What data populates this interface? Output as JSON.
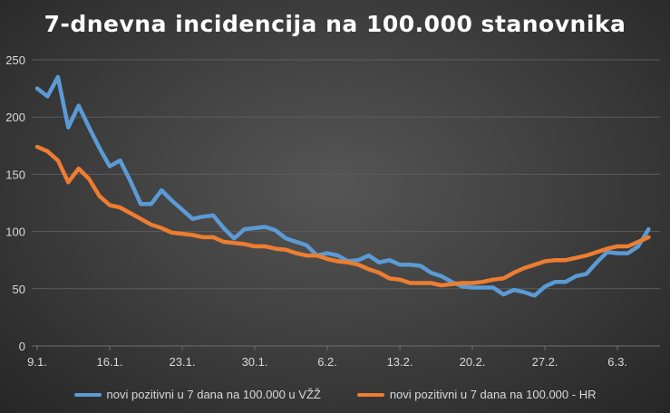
{
  "chart_data": {
    "type": "line",
    "title": "7-dnevna incidencija na 100.000 stanovnika",
    "xlabel": "",
    "ylabel": "",
    "ylim": [
      0,
      250
    ],
    "yticks": [
      0,
      50,
      100,
      150,
      200,
      250
    ],
    "grid": true,
    "legend_position": "bottom",
    "x": [
      "9.1.",
      "10.1.",
      "11.1.",
      "12.1.",
      "13.1.",
      "14.1.",
      "15.1.",
      "16.1.",
      "17.1.",
      "18.1.",
      "19.1.",
      "20.1.",
      "21.1.",
      "22.1.",
      "23.1.",
      "24.1.",
      "25.1.",
      "26.1.",
      "27.1.",
      "28.1.",
      "29.1.",
      "30.1.",
      "31.1.",
      "1.2.",
      "2.2.",
      "3.2.",
      "4.2.",
      "5.2.",
      "6.2.",
      "7.2.",
      "8.2.",
      "9.2.",
      "10.2.",
      "11.2.",
      "12.2.",
      "13.2.",
      "14.2.",
      "15.2.",
      "16.2.",
      "17.2.",
      "18.2.",
      "19.2.",
      "20.2.",
      "21.2.",
      "22.2.",
      "23.2.",
      "24.2.",
      "25.2.",
      "26.2.",
      "27.2.",
      "28.2.",
      "1.3.",
      "2.3.",
      "3.3.",
      "4.3.",
      "5.3.",
      "6.3.",
      "7.3.",
      "8.3.",
      "9.3."
    ],
    "xtick_labels": [
      "9.1.",
      "16.1.",
      "23.1.",
      "30.1.",
      "6.2.",
      "13.2.",
      "20.2.",
      "27.2.",
      "6.3."
    ],
    "series": [
      {
        "name": "novi pozitivni u 7 dana na 100.000 u VŽŽ",
        "color": "#5B9BD5",
        "values": [
          225,
          218,
          235,
          191,
          210,
          191,
          173,
          157,
          162,
          144,
          124,
          124,
          136,
          127,
          119,
          111,
          113,
          114,
          103,
          94,
          102,
          103,
          104,
          101,
          94,
          91,
          88,
          79,
          81,
          79,
          74,
          75,
          79,
          73,
          75,
          71,
          71,
          70,
          64,
          61,
          56,
          52,
          51,
          51,
          51,
          45,
          49,
          47,
          44,
          52,
          56,
          56,
          61,
          63,
          73,
          82,
          81,
          81,
          87,
          102
        ]
      },
      {
        "name": "novi pozitivni u 7 dana na 100.000 - HR",
        "color": "#ED7D31",
        "values": [
          174,
          170,
          162,
          143,
          155,
          146,
          131,
          123,
          121,
          116,
          111,
          106,
          103,
          99,
          98,
          97,
          95,
          95,
          91,
          90,
          89,
          87,
          87,
          85,
          84,
          81,
          79,
          79,
          76,
          74,
          73,
          71,
          67,
          64,
          59,
          58,
          55,
          55,
          55,
          53,
          54,
          55,
          55,
          56,
          58,
          59,
          64,
          68,
          71,
          74,
          75,
          75,
          77,
          79,
          82,
          85,
          87,
          87,
          91,
          95
        ]
      }
    ]
  }
}
